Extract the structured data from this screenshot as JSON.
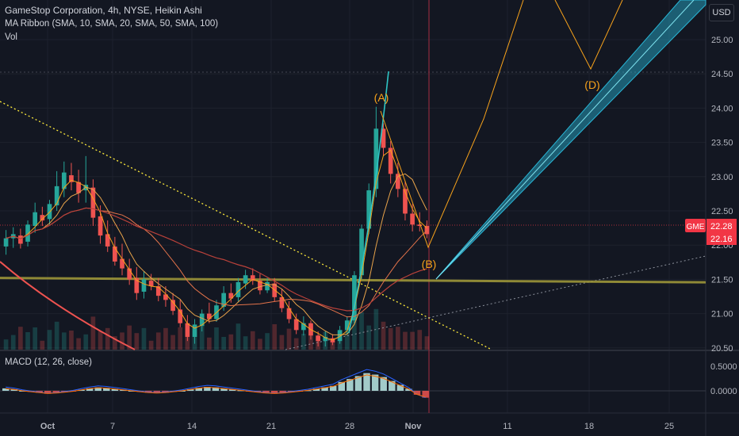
{
  "legend": {
    "title": "GameStop Corporation, 4h, NYSE, Heikin Ashi",
    "ma_ribbon": "MA Ribbon (SMA, 10, SMA, 20, SMA, 50, SMA, 100)",
    "volume": "Vol",
    "macd": "MACD (12, 26, close)"
  },
  "currency": "USD",
  "price_axis": {
    "ticks": [
      "25.00",
      "24.50",
      "24.00",
      "23.50",
      "23.00",
      "22.50",
      "22.00",
      "21.50",
      "21.00",
      "20.50"
    ],
    "symbol_tag": "GME",
    "symbol_price": "22.28",
    "last_price": "22.16"
  },
  "macd_axis": {
    "ticks": [
      "0.5000",
      "0.0000"
    ]
  },
  "time_axis": {
    "ticks": [
      "Oct",
      "7",
      "14",
      "21",
      "28",
      "Nov",
      "11",
      "18",
      "25"
    ]
  },
  "wave_labels": [
    "(A)",
    "(B)",
    "(D)"
  ],
  "colors": {
    "background": "#131722",
    "up": "#26a69a",
    "down": "#ef5350",
    "last_price_tag": "#f23645",
    "wave": "#f7a21b",
    "channel": "#29b6d6",
    "trendline": "#ffeb3b",
    "support": "#a59d3a"
  },
  "chart_data": {
    "type": "candlestick",
    "symbol": "GME",
    "interval": "4h",
    "exchange": "NYSE",
    "candle_style": "Heikin Ashi",
    "ylim": [
      20.42,
      25.45
    ],
    "candles": [
      {
        "o": 21.98,
        "h": 22.22,
        "l": 21.86,
        "c": 22.1
      },
      {
        "o": 22.1,
        "h": 22.26,
        "l": 21.96,
        "c": 22.16
      },
      {
        "o": 22.14,
        "h": 22.24,
        "l": 21.95,
        "c": 22.02
      },
      {
        "o": 22.05,
        "h": 22.36,
        "l": 21.98,
        "c": 22.3
      },
      {
        "o": 22.28,
        "h": 22.62,
        "l": 22.18,
        "c": 22.48
      },
      {
        "o": 22.44,
        "h": 22.56,
        "l": 22.28,
        "c": 22.36
      },
      {
        "o": 22.38,
        "h": 22.66,
        "l": 22.3,
        "c": 22.6
      },
      {
        "o": 22.58,
        "h": 23.08,
        "l": 22.5,
        "c": 22.86
      },
      {
        "o": 22.82,
        "h": 23.22,
        "l": 22.7,
        "c": 23.06
      },
      {
        "o": 23.02,
        "h": 23.2,
        "l": 22.8,
        "c": 22.92
      },
      {
        "o": 22.92,
        "h": 23.1,
        "l": 22.62,
        "c": 22.76
      },
      {
        "o": 22.8,
        "h": 23.3,
        "l": 22.62,
        "c": 22.88
      },
      {
        "o": 22.84,
        "h": 22.96,
        "l": 22.28,
        "c": 22.4
      },
      {
        "o": 22.42,
        "h": 22.58,
        "l": 22.02,
        "c": 22.14
      },
      {
        "o": 22.16,
        "h": 22.36,
        "l": 21.9,
        "c": 21.98
      },
      {
        "o": 21.98,
        "h": 22.12,
        "l": 21.7,
        "c": 21.76
      },
      {
        "o": 21.8,
        "h": 22.02,
        "l": 21.56,
        "c": 21.66
      },
      {
        "o": 21.66,
        "h": 21.8,
        "l": 21.42,
        "c": 21.5
      },
      {
        "o": 21.52,
        "h": 21.68,
        "l": 21.2,
        "c": 21.3
      },
      {
        "o": 21.32,
        "h": 21.62,
        "l": 21.22,
        "c": 21.5
      },
      {
        "o": 21.48,
        "h": 21.58,
        "l": 21.34,
        "c": 21.4
      },
      {
        "o": 21.4,
        "h": 21.52,
        "l": 21.18,
        "c": 21.26
      },
      {
        "o": 21.28,
        "h": 21.4,
        "l": 21.1,
        "c": 21.2
      },
      {
        "o": 21.2,
        "h": 21.3,
        "l": 20.98,
        "c": 21.04
      },
      {
        "o": 21.06,
        "h": 21.2,
        "l": 20.8,
        "c": 20.86
      },
      {
        "o": 20.86,
        "h": 20.98,
        "l": 20.6,
        "c": 20.66
      },
      {
        "o": 20.66,
        "h": 20.92,
        "l": 20.56,
        "c": 20.84
      },
      {
        "o": 20.82,
        "h": 21.06,
        "l": 20.74,
        "c": 21.0
      },
      {
        "o": 21.0,
        "h": 21.16,
        "l": 20.86,
        "c": 20.92
      },
      {
        "o": 20.92,
        "h": 21.2,
        "l": 20.88,
        "c": 21.12
      },
      {
        "o": 21.1,
        "h": 21.4,
        "l": 21.04,
        "c": 21.3
      },
      {
        "o": 21.3,
        "h": 21.44,
        "l": 21.16,
        "c": 21.22
      },
      {
        "o": 21.24,
        "h": 21.52,
        "l": 21.18,
        "c": 21.46
      },
      {
        "o": 21.44,
        "h": 21.64,
        "l": 21.36,
        "c": 21.56
      },
      {
        "o": 21.56,
        "h": 21.66,
        "l": 21.42,
        "c": 21.48
      },
      {
        "o": 21.48,
        "h": 21.58,
        "l": 21.28,
        "c": 21.34
      },
      {
        "o": 21.34,
        "h": 21.52,
        "l": 21.3,
        "c": 21.46
      },
      {
        "o": 21.44,
        "h": 21.52,
        "l": 21.18,
        "c": 21.24
      },
      {
        "o": 21.24,
        "h": 21.36,
        "l": 21.02,
        "c": 21.08
      },
      {
        "o": 21.08,
        "h": 21.18,
        "l": 20.86,
        "c": 20.92
      },
      {
        "o": 20.92,
        "h": 21.0,
        "l": 20.7,
        "c": 20.76
      },
      {
        "o": 20.76,
        "h": 20.96,
        "l": 20.68,
        "c": 20.86
      },
      {
        "o": 20.86,
        "h": 20.9,
        "l": 20.62,
        "c": 20.68
      },
      {
        "o": 20.68,
        "h": 20.74,
        "l": 20.52,
        "c": 20.6
      },
      {
        "o": 20.6,
        "h": 20.74,
        "l": 20.52,
        "c": 20.66
      },
      {
        "o": 20.64,
        "h": 20.7,
        "l": 20.54,
        "c": 20.58
      },
      {
        "o": 20.6,
        "h": 20.82,
        "l": 20.56,
        "c": 20.76
      },
      {
        "o": 20.76,
        "h": 20.96,
        "l": 20.7,
        "c": 20.9
      },
      {
        "o": 20.9,
        "h": 21.62,
        "l": 20.86,
        "c": 21.56
      },
      {
        "o": 21.56,
        "h": 22.3,
        "l": 21.5,
        "c": 22.24
      },
      {
        "o": 22.24,
        "h": 22.9,
        "l": 22.16,
        "c": 22.8
      },
      {
        "o": 22.82,
        "h": 24.02,
        "l": 22.7,
        "c": 23.7
      },
      {
        "o": 23.7,
        "h": 23.78,
        "l": 23.3,
        "c": 23.42
      },
      {
        "o": 23.42,
        "h": 23.52,
        "l": 22.9,
        "c": 23.04
      },
      {
        "o": 23.04,
        "h": 23.2,
        "l": 22.7,
        "c": 22.82
      },
      {
        "o": 22.82,
        "h": 22.94,
        "l": 22.36,
        "c": 22.46
      },
      {
        "o": 22.46,
        "h": 22.6,
        "l": 22.2,
        "c": 22.3
      },
      {
        "o": 22.3,
        "h": 22.48,
        "l": 22.2,
        "c": 22.28
      },
      {
        "o": 22.28,
        "h": 22.36,
        "l": 22.1,
        "c": 22.16
      }
    ],
    "macd_histogram": [
      0.05,
      0.03,
      0.0,
      -0.02,
      -0.04,
      -0.06,
      -0.05,
      -0.03,
      -0.01,
      0.02,
      0.05,
      0.07,
      0.06,
      0.04,
      0.02,
      0.0,
      -0.02,
      -0.04,
      -0.05,
      -0.04,
      -0.02,
      0.0,
      0.03,
      0.06,
      0.08,
      0.07,
      0.05,
      0.03,
      0.01,
      -0.01,
      -0.03,
      -0.05,
      -0.06,
      -0.05,
      -0.03,
      -0.01,
      0.01,
      0.04,
      0.07,
      0.1,
      0.18,
      0.24,
      0.3,
      0.36,
      0.33,
      0.28,
      0.2,
      0.12,
      0.04,
      -0.08,
      -0.14
    ],
    "macd_ylim": [
      -0.35,
      0.65
    ],
    "horizontal_levels": [
      21.48,
      21.52
    ],
    "wave_points": [
      {
        "label": "(A)",
        "price": 23.95
      },
      {
        "label": "(B)",
        "price": 21.58
      },
      {
        "label": "(D)",
        "price": 24.56
      }
    ]
  }
}
